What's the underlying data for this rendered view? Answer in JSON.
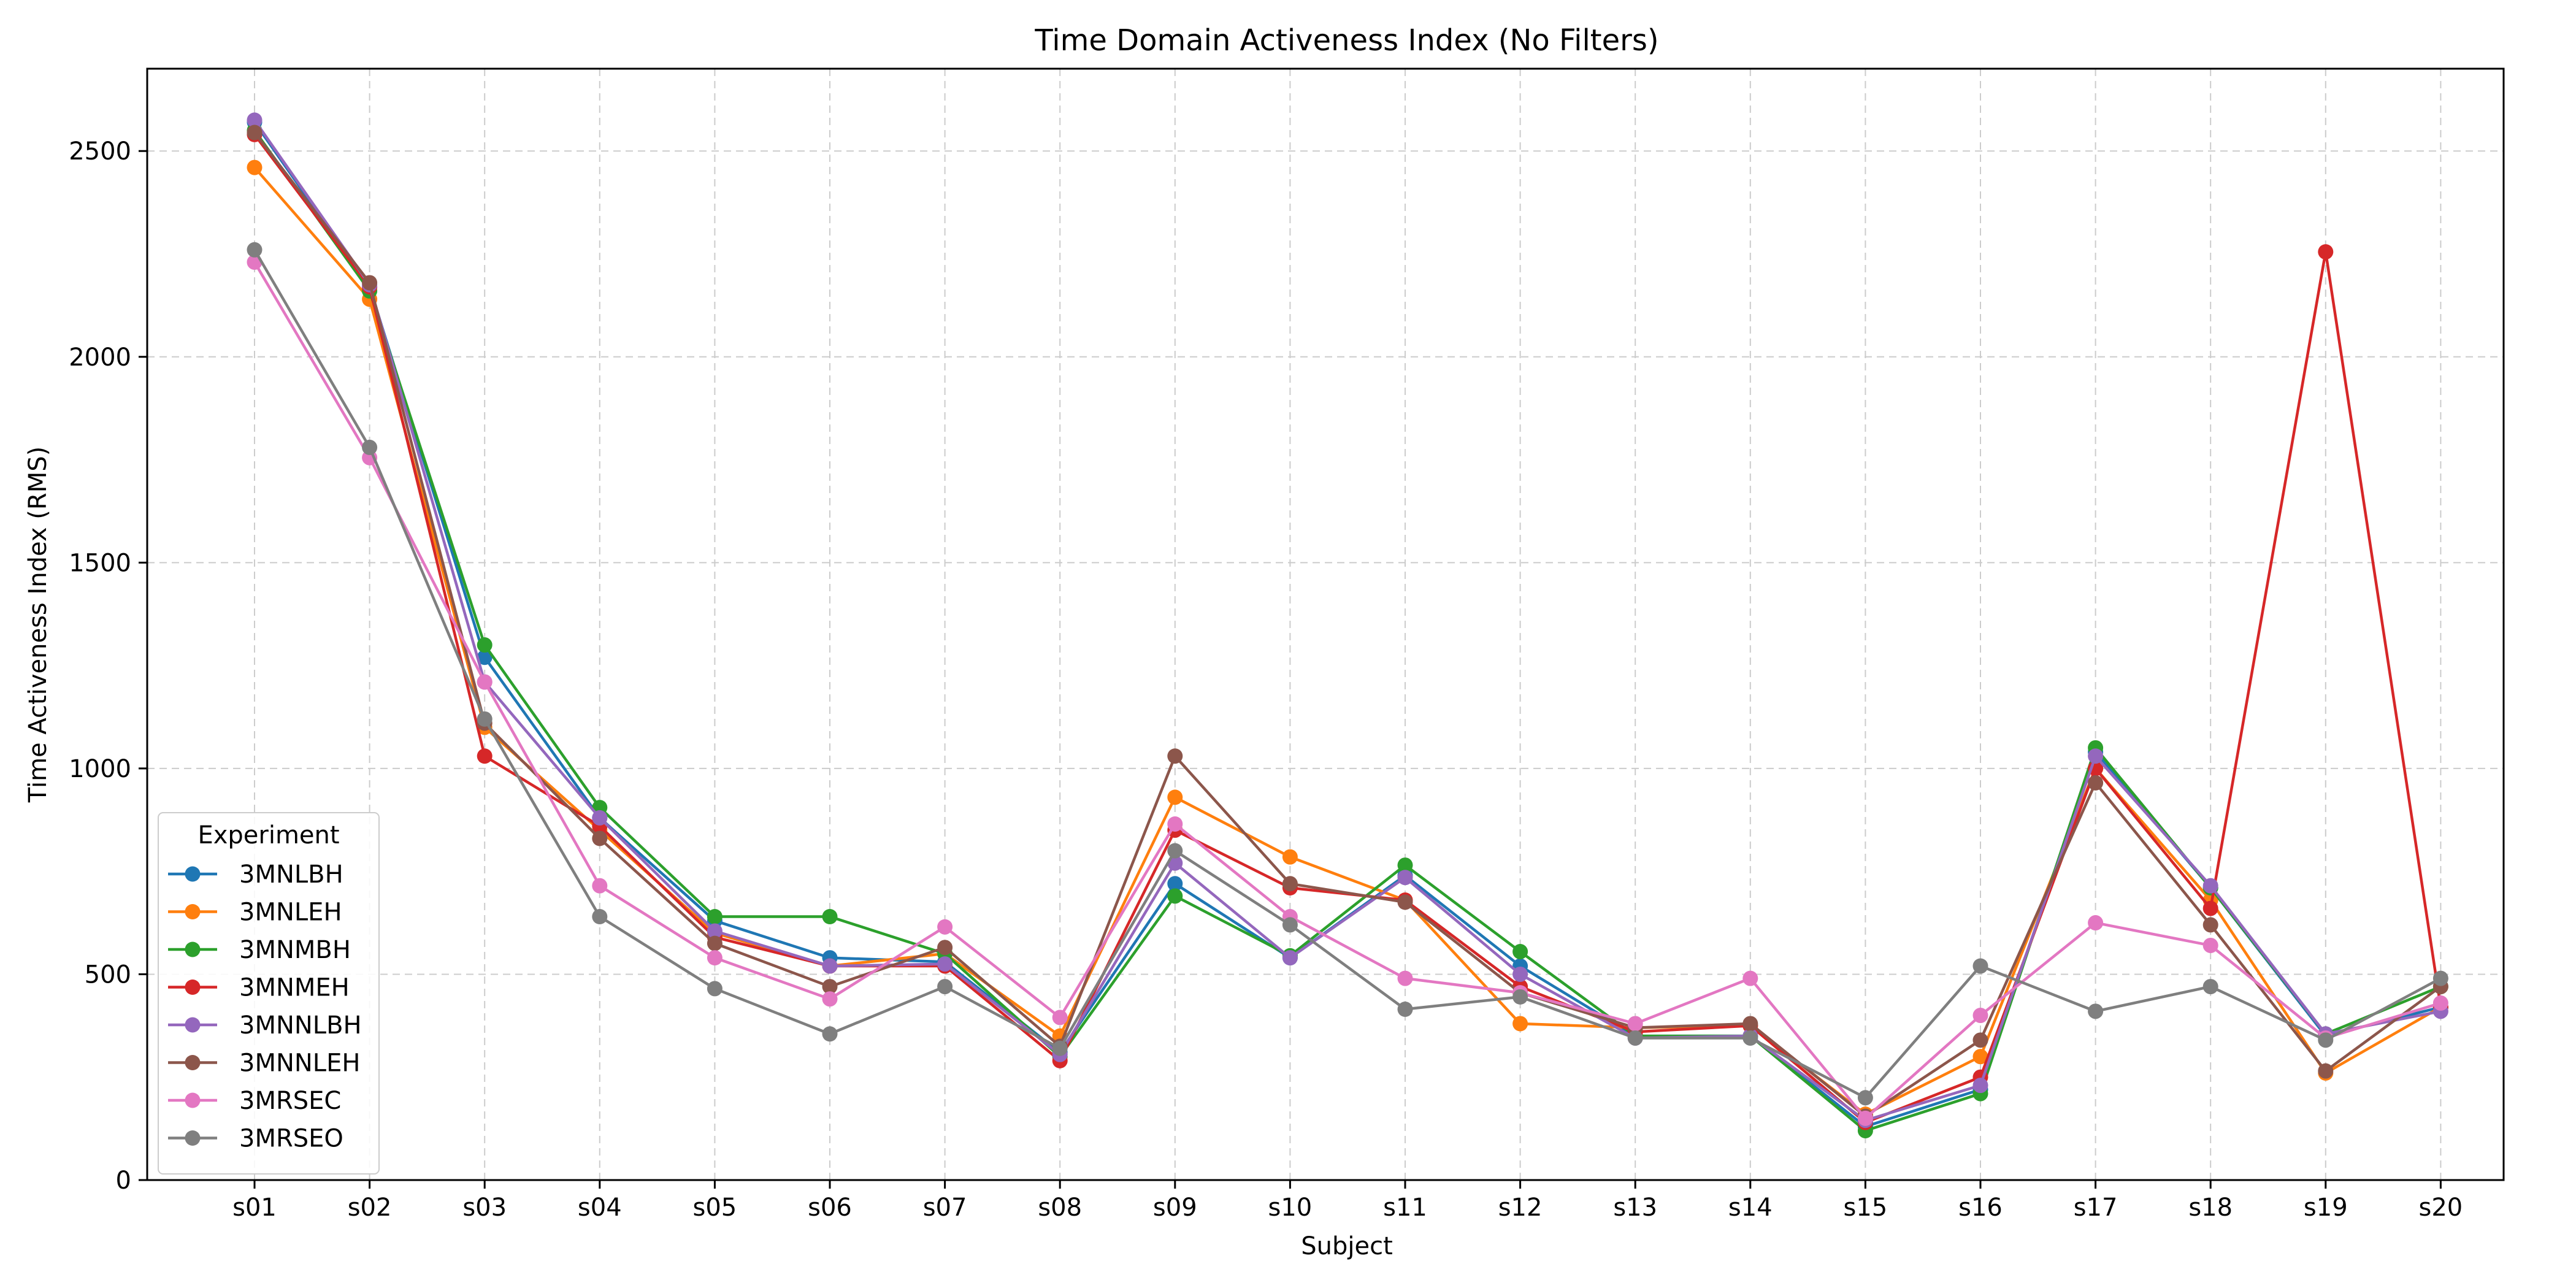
{
  "chart_data": {
    "type": "line",
    "title": "Time Domain Activeness Index (No Filters)",
    "xlabel": "Subject",
    "ylabel": "Time Activeness Index (RMS)",
    "ylim": [
      0,
      2700
    ],
    "yticks": [
      0,
      500,
      1000,
      1500,
      2000,
      2500
    ],
    "grid": true,
    "legend_title": "Experiment",
    "legend_position": "lower-left",
    "categories": [
      "s01",
      "s02",
      "s03",
      "s04",
      "s05",
      "s06",
      "s07",
      "s08",
      "s09",
      "s10",
      "s11",
      "s12",
      "s13",
      "s14",
      "s15",
      "s16",
      "s17",
      "s18",
      "s19",
      "s20"
    ],
    "series": [
      {
        "name": "3MNLBH",
        "color": "#1f77b4",
        "values": [
          2570,
          2170,
          1270,
          880,
          630,
          540,
          530,
          310,
          720,
          540,
          740,
          520,
          350,
          350,
          130,
          220,
          1040,
          710,
          350,
          420
        ]
      },
      {
        "name": "3MNLEH",
        "color": "#ff7f0e",
        "values": [
          2460,
          2140,
          1100,
          850,
          600,
          520,
          550,
          350,
          930,
          785,
          680,
          380,
          370,
          375,
          160,
          300,
          1000,
          680,
          260,
          420
        ]
      },
      {
        "name": "3MNMBH",
        "color": "#2ca02c",
        "values": [
          2550,
          2160,
          1300,
          905,
          640,
          640,
          550,
          300,
          690,
          545,
          765,
          555,
          350,
          350,
          120,
          210,
          1050,
          710,
          355,
          470
        ]
      },
      {
        "name": "3MNMEH",
        "color": "#d62728",
        "values": [
          2540,
          2170,
          1030,
          860,
          590,
          520,
          520,
          290,
          850,
          710,
          680,
          470,
          360,
          375,
          140,
          250,
          1000,
          660,
          2255,
          420
        ]
      },
      {
        "name": "3MNNLBH",
        "color": "#9467bd",
        "values": [
          2575,
          2175,
          1210,
          880,
          605,
          520,
          525,
          305,
          770,
          540,
          735,
          500,
          345,
          350,
          145,
          230,
          1030,
          715,
          355,
          410
        ]
      },
      {
        "name": "3MNNLEH",
        "color": "#8c564b",
        "values": [
          2545,
          2180,
          1110,
          830,
          575,
          470,
          565,
          325,
          1030,
          720,
          675,
          455,
          370,
          380,
          155,
          340,
          965,
          620,
          265,
          470
        ]
      },
      {
        "name": "3MRSEC",
        "color": "#e377c2",
        "values": [
          2230,
          1755,
          1210,
          715,
          540,
          440,
          615,
          395,
          865,
          640,
          490,
          455,
          380,
          490,
          150,
          400,
          625,
          570,
          345,
          430
        ]
      },
      {
        "name": "3MRSEO",
        "color": "#7f7f7f",
        "values": [
          2260,
          1780,
          1120,
          640,
          465,
          355,
          470,
          320,
          800,
          620,
          415,
          445,
          345,
          345,
          200,
          520,
          410,
          470,
          340,
          490
        ]
      }
    ]
  }
}
